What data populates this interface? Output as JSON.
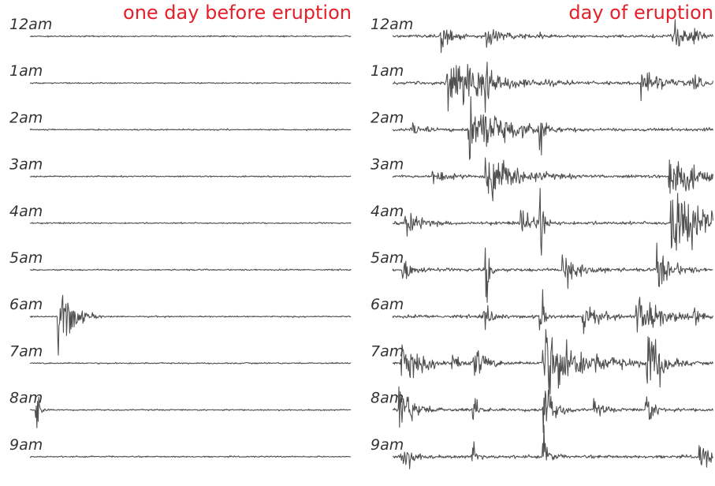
{
  "panels": [
    {
      "title": "one day before eruption",
      "rows": [
        "12am",
        "1am",
        "2am",
        "3am",
        "4am",
        "5am",
        "6am",
        "7am",
        "8am",
        "9am"
      ]
    },
    {
      "title": "day of eruption",
      "rows": [
        "12am",
        "1am",
        "2am",
        "3am",
        "4am",
        "5am",
        "6am",
        "7am",
        "8am",
        "9am"
      ]
    }
  ]
}
